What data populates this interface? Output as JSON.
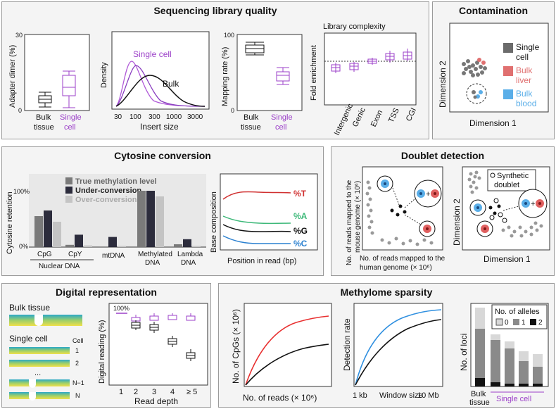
{
  "panels": {
    "sequencing": {
      "title": "Sequencing library quality",
      "adapter": {
        "ylabel": "Adapter dimer (%)",
        "ymax": "30",
        "ymin": "0",
        "x1a": "Bulk",
        "x1b": "tissue",
        "x2a": "Single",
        "x2b": "cell"
      },
      "insert": {
        "ylabel": "Density",
        "xlabel": "Insert size",
        "single_label": "Single cell",
        "bulk_label": "Bulk",
        "ticks": [
          "30",
          "100",
          "300",
          "1000",
          "3000"
        ]
      },
      "mapping": {
        "ylabel": "Mapping rate (%)",
        "ymax": "100",
        "ymin": "0",
        "x1a": "Bulk",
        "x1b": "tissue",
        "x2a": "Single",
        "x2b": "cell"
      },
      "complexity": {
        "title": "Library complexity",
        "ylabel": "Fold enrichment",
        "categories": [
          "Intergenic",
          "Genic",
          "Exon",
          "TSS",
          "CGI"
        ]
      }
    },
    "contamination": {
      "title": "Contamination",
      "ylabel": "Dimension 2",
      "xlabel": "Dimension 1",
      "legend": [
        {
          "line1": "Single",
          "line2": "cell",
          "color": "#6b6b6b"
        },
        {
          "line1": "Bulk",
          "line2": "liver",
          "color": "#e07070"
        },
        {
          "line1": "Bulk",
          "line2": "blood",
          "color": "#5aaee8"
        }
      ]
    },
    "cytosine": {
      "title": "Cytosine conversion",
      "ylabel": "Cytosine retention",
      "y100": "100%",
      "y0": "0%",
      "legend": [
        "True methylation level",
        "Under-conversion",
        "Over-conversion"
      ],
      "colors": {
        "true": "#7a7a7a",
        "under": "#2c2c3c",
        "over": "#c4c4c4"
      },
      "categories": [
        {
          "label": "CpG",
          "values": [
            55,
            65,
            45
          ]
        },
        {
          "label": "CpY",
          "values": [
            4,
            22,
            3
          ]
        },
        {
          "label": "mtDNA",
          "values": [
            1,
            18,
            2
          ]
        },
        {
          "label": "Methylated DNA",
          "values": [
            100,
            100,
            90
          ]
        },
        {
          "label": "Lambda DNA",
          "values": [
            5,
            14,
            2
          ]
        }
      ],
      "nuclear": "Nuclear DNA",
      "cat_methyl_a": "Methylated",
      "cat_methyl_b": "DNA",
      "cat_lambda_a": "Lambda",
      "cat_lambda_b": "DNA",
      "base": {
        "ylabel": "Base composition",
        "xlabel": "Position in read (bp)",
        "labels": [
          "%T",
          "%A",
          "%G",
          "%C"
        ],
        "colors": [
          "#d03030",
          "#3cb878",
          "#111111",
          "#2a80d0"
        ]
      }
    },
    "doublet": {
      "title": "Doublet detection",
      "ylabel1": "No. of reads mapped to the",
      "ylabel2": "mouse genome (× 10⁶)",
      "xlabel1": "No. of reads mapped to the",
      "xlabel2": "human genome (× 10⁶)",
      "dim2": "Dimension 2",
      "dim1": "Dimension 1",
      "synthetic1": "Synthetic",
      "synthetic2": "doublet",
      "plus": "+"
    },
    "digital": {
      "title": "Digital representation",
      "bulk": "Bulk tissue",
      "single": "Single cell",
      "cell": "Cell",
      "cells": [
        "1",
        "2",
        "...",
        "N−1",
        "N"
      ],
      "ylabel": "Digital reading (%)",
      "xlabel": "Read depth",
      "top": "100%",
      "xticks": [
        "1",
        "2",
        "3",
        "4",
        "≥ 5"
      ]
    },
    "sparsity": {
      "title": "Methylome sparsity",
      "p1": {
        "ylabel": "No. of CpGs (× 10⁶)",
        "xlabel": "No. of reads (× 10⁶)"
      },
      "p2": {
        "ylabel": "Detection rate",
        "xlabel": "Window size",
        "xmin": "1 kb",
        "xmax": "10 Mb"
      },
      "p3": {
        "ylabel": "No. of loci",
        "legend_title": "No. of alleles",
        "legend": [
          "0",
          "1",
          "2"
        ],
        "bulk1": "Bulk",
        "bulk2": "tissue",
        "single": "Single cell"
      }
    }
  }
}
